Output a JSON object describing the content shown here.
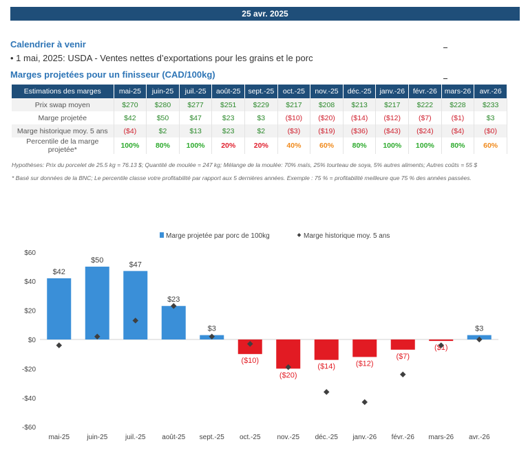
{
  "header": {
    "date": "25 avr. 2025"
  },
  "calendar": {
    "title": "Calendrier à venir",
    "item": "• 1 mai, 2025: USDA - Ventes nettes d’exportations pour les grains et le porc"
  },
  "margins": {
    "title": "Marges projetées pour un finisseur (CAD/100kg)",
    "table": {
      "corner": "Estimations des marges",
      "months": [
        "mai-25",
        "juin-25",
        "juil.-25",
        "août-25",
        "sept.-25",
        "oct.-25",
        "nov.-25",
        "déc.-25",
        "janv.-26",
        "févr.-26",
        "mars-26",
        "avr.-26"
      ],
      "rows": [
        {
          "label": "Prix swap moyen",
          "cells": [
            {
              "v": "$270",
              "c": "pos"
            },
            {
              "v": "$280",
              "c": "pos"
            },
            {
              "v": "$277",
              "c": "pos"
            },
            {
              "v": "$251",
              "c": "pos"
            },
            {
              "v": "$229",
              "c": "pos"
            },
            {
              "v": "$217",
              "c": "pos"
            },
            {
              "v": "$208",
              "c": "pos"
            },
            {
              "v": "$213",
              "c": "pos"
            },
            {
              "v": "$217",
              "c": "pos"
            },
            {
              "v": "$222",
              "c": "pos"
            },
            {
              "v": "$228",
              "c": "pos"
            },
            {
              "v": "$233",
              "c": "pos"
            }
          ]
        },
        {
          "label": "Marge projetée",
          "cells": [
            {
              "v": "$42",
              "c": "pos"
            },
            {
              "v": "$50",
              "c": "pos"
            },
            {
              "v": "$47",
              "c": "pos"
            },
            {
              "v": "$23",
              "c": "pos"
            },
            {
              "v": "$3",
              "c": "pos"
            },
            {
              "v": "($10)",
              "c": "neg"
            },
            {
              "v": "($20)",
              "c": "neg"
            },
            {
              "v": "($14)",
              "c": "neg"
            },
            {
              "v": "($12)",
              "c": "neg"
            },
            {
              "v": "($7)",
              "c": "neg"
            },
            {
              "v": "($1)",
              "c": "neg"
            },
            {
              "v": "$3",
              "c": "pos"
            }
          ]
        },
        {
          "label": "Marge historique moy. 5 ans",
          "cells": [
            {
              "v": "($4)",
              "c": "neg"
            },
            {
              "v": "$2",
              "c": "pos"
            },
            {
              "v": "$13",
              "c": "pos"
            },
            {
              "v": "$23",
              "c": "pos"
            },
            {
              "v": "$2",
              "c": "pos"
            },
            {
              "v": "($3)",
              "c": "neg"
            },
            {
              "v": "($19)",
              "c": "neg"
            },
            {
              "v": "($36)",
              "c": "neg"
            },
            {
              "v": "($43)",
              "c": "neg"
            },
            {
              "v": "($24)",
              "c": "neg"
            },
            {
              "v": "($4)",
              "c": "neg"
            },
            {
              "v": "($0)",
              "c": "neg"
            }
          ]
        },
        {
          "label": "Percentile de la marge projetée*",
          "cells": [
            {
              "v": "100%",
              "c": "pg"
            },
            {
              "v": "80%",
              "c": "pg"
            },
            {
              "v": "100%",
              "c": "pg"
            },
            {
              "v": "20%",
              "c": "pr"
            },
            {
              "v": "20%",
              "c": "pr"
            },
            {
              "v": "40%",
              "c": "po"
            },
            {
              "v": "60%",
              "c": "po"
            },
            {
              "v": "80%",
              "c": "pg"
            },
            {
              "v": "100%",
              "c": "pg"
            },
            {
              "v": "100%",
              "c": "pg"
            },
            {
              "v": "80%",
              "c": "pg"
            },
            {
              "v": "60%",
              "c": "po"
            }
          ]
        }
      ]
    },
    "hypotheses": "Hypothèses: Prix du porcelet de 25.5 kg = 76.13 $; Quantité de moulée = 247 kg; Mélange de la moulée: 70% maïs, 25% tourteau de soya, 5% autres aliments; Autres coûts = 55 $",
    "footnote": "* Basé sur données de la BNC; Le percentile classe votre profitabilité par rapport aux 5 dernières années. Exemple : 75 % = profitabilité meilleure que 75 % des années passées."
  },
  "colors": {
    "banner": "#1f4e79",
    "positive_bar": "#3a8fd8",
    "negative_bar": "#e21b23",
    "marker": "#3f3f3f",
    "title": "#2e75b6"
  },
  "chart_data": {
    "type": "bar",
    "categories": [
      "mai-25",
      "juin-25",
      "juil.-25",
      "août-25",
      "sept.-25",
      "oct.-25",
      "nov.-25",
      "déc.-25",
      "janv.-26",
      "févr.-26",
      "mars-26",
      "avr.-26"
    ],
    "series": [
      {
        "name": "Marge projetée par porc de 100kg",
        "kind": "bar",
        "values": [
          42,
          50,
          47,
          23,
          3,
          -10,
          -20,
          -14,
          -12,
          -7,
          -1,
          3
        ],
        "labels": [
          "$42",
          "$50",
          "$47",
          "$23",
          "$3",
          "($10)",
          "($20)",
          "($14)",
          "($12)",
          "($7)",
          "($1)",
          "$3"
        ]
      },
      {
        "name": "Marge historique moy. 5 ans",
        "kind": "marker",
        "values": [
          -4,
          2,
          13,
          23,
          2,
          -3,
          -19,
          -36,
          -43,
          -24,
          -4,
          0
        ]
      }
    ],
    "yticks": [
      "$60",
      "$40",
      "$20",
      "$0",
      "-$20",
      "-$40",
      "-$60"
    ],
    "ytick_values": [
      60,
      40,
      20,
      0,
      -20,
      -40,
      -60
    ],
    "ylim": [
      -60,
      60
    ],
    "legend_position": "top-center",
    "grid": false
  }
}
